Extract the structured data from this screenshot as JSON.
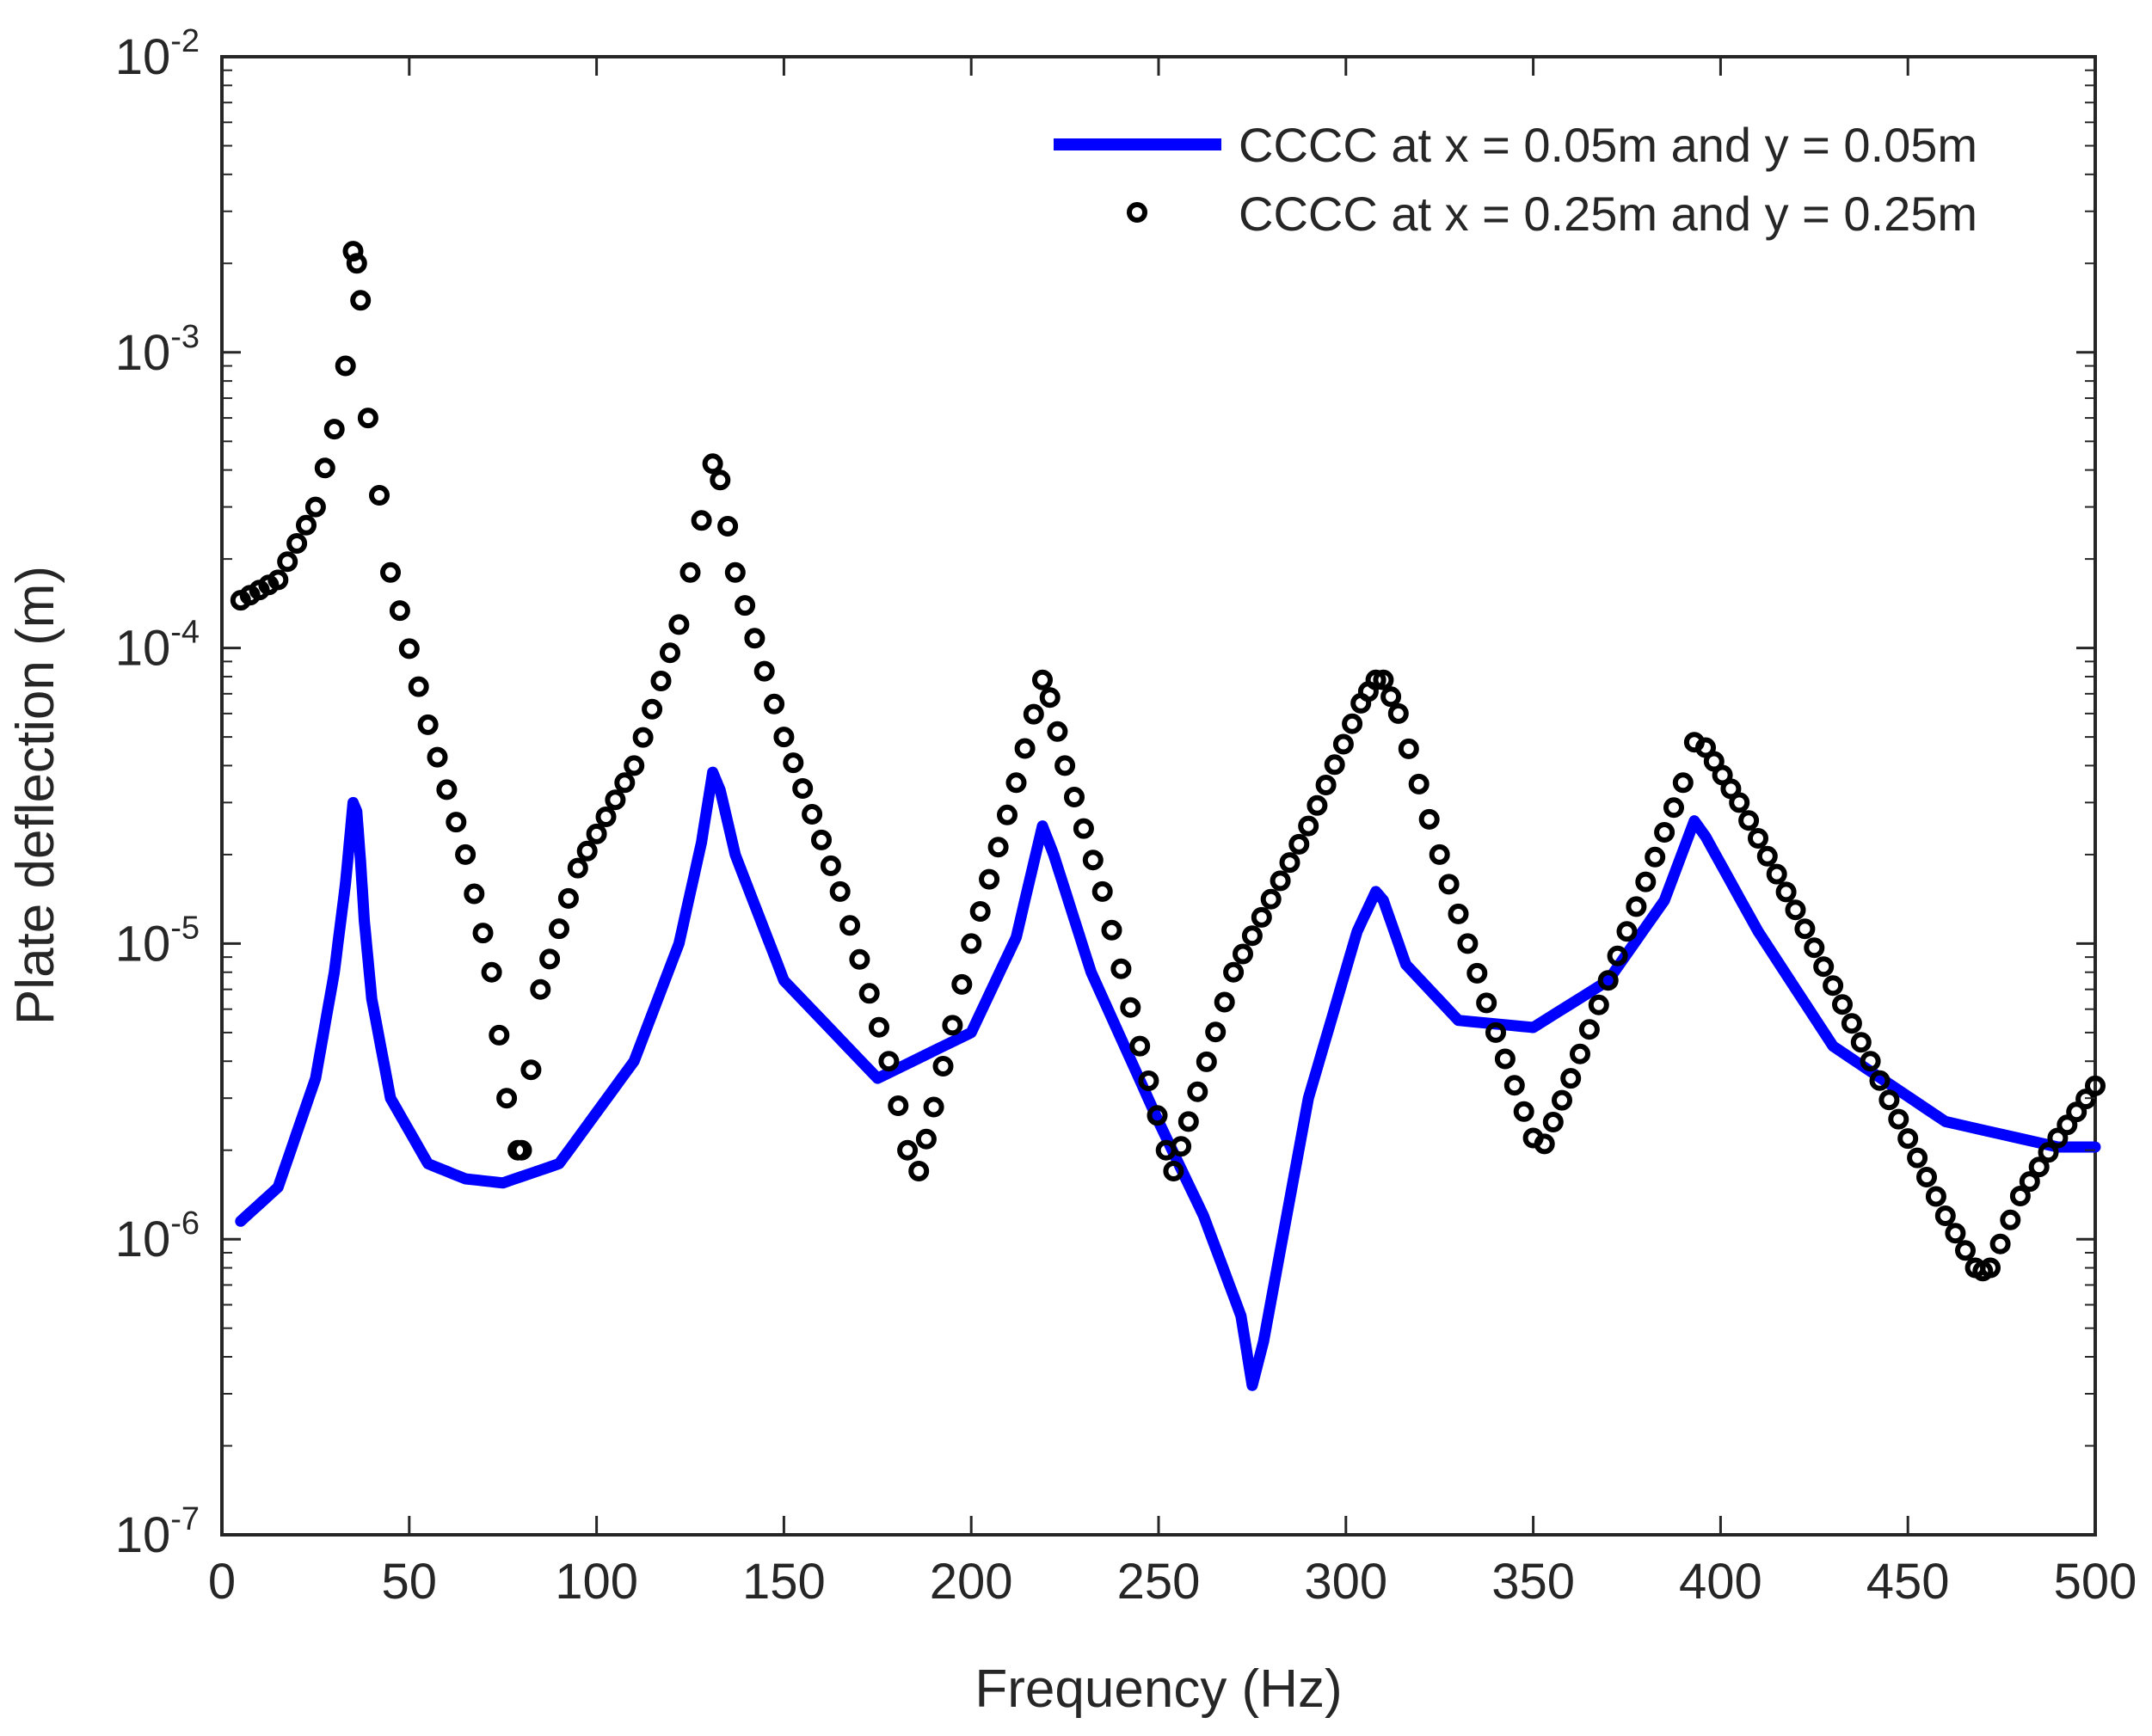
{
  "chart_data": {
    "type": "line",
    "title": "",
    "xlabel": "Frequency (Hz)",
    "ylabel": "Plate deflection (m)",
    "xlim": [
      0,
      500
    ],
    "ylim": [
      1e-07,
      0.01
    ],
    "yscale": "log",
    "grid": false,
    "legend_position": "top-right",
    "x_ticks": [
      {
        "value": 0,
        "label": "0"
      },
      {
        "value": 50,
        "label": "50"
      },
      {
        "value": 100,
        "label": "100"
      },
      {
        "value": 150,
        "label": "150"
      },
      {
        "value": 200,
        "label": "200"
      },
      {
        "value": 250,
        "label": "250"
      },
      {
        "value": 300,
        "label": "300"
      },
      {
        "value": 350,
        "label": "350"
      },
      {
        "value": 400,
        "label": "400"
      },
      {
        "value": 450,
        "label": "450"
      },
      {
        "value": 500,
        "label": "500"
      }
    ],
    "y_ticks": [
      {
        "value": 1e-07,
        "base": "10",
        "exp": "-7"
      },
      {
        "value": 1e-06,
        "base": "10",
        "exp": "-6"
      },
      {
        "value": 1e-05,
        "base": "10",
        "exp": "-5"
      },
      {
        "value": 0.0001,
        "base": "10",
        "exp": "-4"
      },
      {
        "value": 0.001,
        "base": "10",
        "exp": "-3"
      },
      {
        "value": 0.01,
        "base": "10",
        "exp": "-2"
      }
    ],
    "series": [
      {
        "name": "CCCC at x = 0.05m and y = 0.05m",
        "style": "line",
        "color": "#0000ff",
        "x": [
          5,
          15,
          25,
          30,
          33,
          35,
          36,
          37,
          38,
          40,
          45,
          55,
          65,
          75,
          90,
          110,
          122,
          128,
          131,
          133,
          137,
          150,
          175,
          200,
          212,
          219,
          222,
          232,
          250,
          262,
          272,
          275,
          278,
          290,
          303,
          308,
          310,
          316,
          330,
          350,
          370,
          385,
          393,
          396,
          410,
          430,
          460,
          490,
          500
        ],
        "y": [
          1.15e-06,
          1.5e-06,
          3.5e-06,
          8e-06,
          1.6e-05,
          3e-05,
          2.8e-05,
          1.9e-05,
          1.2e-05,
          6.5e-06,
          3e-06,
          1.8e-06,
          1.6e-06,
          1.55e-06,
          1.8e-06,
          4e-06,
          1e-05,
          2.2e-05,
          3.8e-05,
          3.3e-05,
          2e-05,
          7.5e-06,
          3.5e-06,
          5e-06,
          1.05e-05,
          2.5e-05,
          2e-05,
          8e-06,
          2.5e-06,
          1.2e-06,
          5.5e-07,
          3.2e-07,
          4.5e-07,
          3e-06,
          1.1e-05,
          1.5e-05,
          1.4e-05,
          8.5e-06,
          5.5e-06,
          5.2e-06,
          7.5e-06,
          1.4e-05,
          2.6e-05,
          2.3e-05,
          1.1e-05,
          4.5e-06,
          2.5e-06,
          2.05e-06,
          2.05e-06
        ]
      },
      {
        "name": "CCCC at x = 0.25m and y = 0.25m",
        "style": "markers",
        "color": "#000000",
        "x": [
          5,
          15,
          25,
          30,
          33,
          35,
          36,
          37,
          39,
          45,
          55,
          65,
          72,
          76,
          79,
          80,
          85,
          95,
          110,
          122,
          128,
          131,
          133,
          137,
          150,
          165,
          178,
          183,
          186,
          190,
          200,
          212,
          219,
          221,
          225,
          235,
          245,
          252,
          254,
          258,
          270,
          290,
          304,
          308,
          310,
          314,
          325,
          340,
          350,
          353,
          360,
          375,
          390,
          393,
          396,
          405,
          420,
          440,
          460,
          468,
          470,
          472,
          480,
          490,
          500
        ],
        "y": [
          0.000145,
          0.00017,
          0.0003,
          0.00055,
          0.0009,
          0.0022,
          0.002,
          0.0015,
          0.0006,
          0.00018,
          5.5e-05,
          2e-05,
          8e-06,
          3e-06,
          2e-06,
          2e-06,
          7e-06,
          1.8e-05,
          4e-05,
          0.00012,
          0.00027,
          0.00042,
          0.00037,
          0.00018,
          5e-05,
          1.5e-05,
          4e-06,
          2e-06,
          1.7e-06,
          2.8e-06,
          1e-05,
          3.5e-05,
          7.8e-05,
          6.8e-05,
          4e-05,
          1.5e-05,
          4.5e-06,
          2e-06,
          1.7e-06,
          2.5e-06,
          8e-06,
          2.5e-05,
          6.5e-05,
          7.8e-05,
          7.8e-05,
          6e-05,
          2e-05,
          5e-06,
          2.2e-06,
          2.1e-06,
          3.5e-06,
          1.1e-05,
          3.5e-05,
          4.8e-05,
          4.6e-05,
          3e-05,
          1.3e-05,
          4e-06,
          1.2e-06,
          8e-07,
          7.8e-07,
          8e-07,
          1.4e-06,
          2.2e-06,
          3.3e-06
        ]
      }
    ]
  }
}
